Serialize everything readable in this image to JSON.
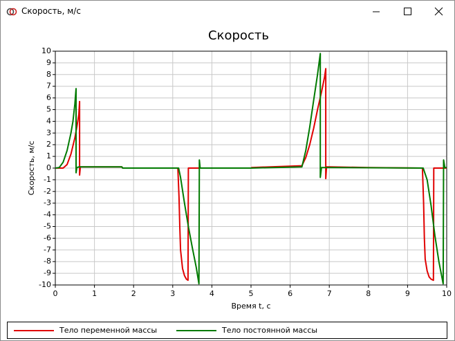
{
  "window": {
    "title": "Скорость, м/с"
  },
  "chart_data": {
    "type": "line",
    "title": "Скорость",
    "x_label": "Время t, с",
    "y_label": "Скорость, м/с",
    "xlim": [
      0,
      10
    ],
    "ylim": [
      -10,
      10
    ],
    "xticks": [
      0,
      1,
      2,
      3,
      4,
      5,
      6,
      7,
      8,
      9,
      10
    ],
    "yticks": [
      -10,
      -9,
      -8,
      -7,
      -6,
      -5,
      -4,
      -3,
      -2,
      -1,
      0,
      1,
      2,
      3,
      4,
      5,
      6,
      7,
      8,
      9,
      10
    ],
    "grid": true,
    "legend": "bottom",
    "series": [
      {
        "name": "Тело переменной массы",
        "color": "#e00000",
        "x": [
          0,
          0.2,
          0.3,
          0.4,
          0.5,
          0.55,
          0.6,
          0.62,
          0.62,
          0.64,
          0.7,
          1.7,
          1.72,
          3.13,
          3.16,
          3.18,
          3.2,
          3.25,
          3.3,
          3.35,
          3.39,
          3.4,
          3.42,
          5.0,
          5.02,
          6.3,
          6.4,
          6.5,
          6.6,
          6.7,
          6.8,
          6.88,
          6.91,
          6.91,
          6.93,
          7.0,
          8.0,
          9.38,
          9.41,
          9.43,
          9.45,
          9.5,
          9.55,
          9.6,
          9.66,
          9.67,
          9.7,
          10
        ],
        "values": [
          0,
          0,
          0.3,
          1.2,
          2.6,
          3.5,
          4.6,
          5.7,
          -0.6,
          0.1,
          0.1,
          0.1,
          0,
          0,
          -2.5,
          -5,
          -7,
          -8.6,
          -9.2,
          -9.5,
          -9.6,
          0,
          0,
          0,
          0.05,
          0.2,
          0.9,
          2,
          3.4,
          5,
          6.5,
          7.8,
          8.5,
          -0.9,
          0.1,
          0.1,
          0.05,
          0,
          -3,
          -6,
          -7.8,
          -8.8,
          -9.3,
          -9.5,
          -9.6,
          0,
          0,
          0
        ]
      },
      {
        "name": "Тело постоянной массы",
        "color": "#007a00",
        "x": [
          0,
          0.1,
          0.2,
          0.3,
          0.4,
          0.45,
          0.5,
          0.53,
          0.53,
          0.55,
          0.6,
          1.7,
          1.72,
          3.15,
          3.2,
          3.3,
          3.4,
          3.5,
          3.6,
          3.67,
          3.68,
          3.7,
          5.0,
          6.3,
          6.4,
          6.5,
          6.6,
          6.7,
          6.77,
          6.77,
          6.8,
          7.0,
          9.4,
          9.5,
          9.6,
          9.7,
          9.8,
          9.91,
          9.92,
          9.95,
          10
        ],
        "values": [
          0,
          0.05,
          0.5,
          1.5,
          3,
          4,
          5.5,
          6.8,
          -0.4,
          0.05,
          0.1,
          0.1,
          0,
          0,
          -0.8,
          -3,
          -5,
          -6.8,
          -8.5,
          -9.9,
          0.7,
          0,
          0,
          0.1,
          1.5,
          3.5,
          5.8,
          8,
          9.8,
          -0.8,
          0.05,
          0.05,
          0,
          -1,
          -3.2,
          -5.8,
          -8,
          -9.9,
          0.7,
          0.05,
          0.05
        ]
      }
    ]
  }
}
